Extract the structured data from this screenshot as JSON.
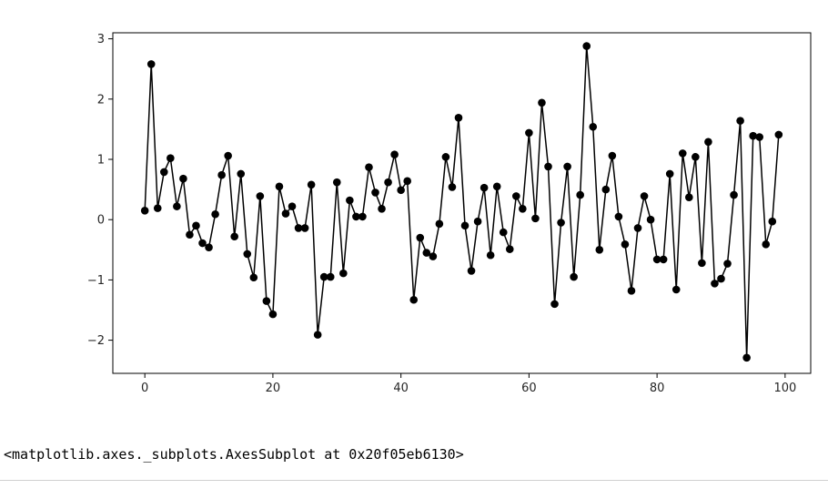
{
  "chart_data": {
    "type": "line",
    "marker": "circle",
    "color": "#000000",
    "xlabel": "",
    "ylabel": "",
    "title": "",
    "xlim": [
      -5,
      104
    ],
    "ylim": [
      -2.55,
      3.1
    ],
    "xticks": [
      0,
      20,
      40,
      60,
      80,
      100
    ],
    "yticks": [
      -2,
      -1,
      0,
      1,
      2,
      3
    ],
    "xtick_labels": [
      "0",
      "20",
      "40",
      "60",
      "80",
      "100"
    ],
    "ytick_labels": [
      "−2",
      "−1",
      "0",
      "1",
      "2",
      "3"
    ],
    "grid": false,
    "series": [
      {
        "x": [
          0,
          1,
          2,
          3,
          4,
          5,
          6,
          7,
          8,
          9,
          10,
          11,
          12,
          13,
          14,
          15,
          16,
          17,
          18,
          19,
          20,
          21,
          22,
          23,
          24,
          25,
          26,
          27,
          28,
          29,
          30,
          31,
          32,
          33,
          34,
          35,
          36,
          37,
          38,
          39,
          40,
          41,
          42,
          43,
          44,
          45,
          46,
          47,
          48,
          49,
          50,
          51,
          52,
          53,
          54,
          55,
          56,
          57,
          58,
          59,
          60,
          61,
          62,
          63,
          64,
          65,
          66,
          67,
          68,
          69,
          70,
          71,
          72,
          73,
          74,
          75,
          76,
          77,
          78,
          79,
          80,
          81,
          82,
          83,
          84,
          85,
          86,
          87,
          88,
          89,
          90,
          91,
          92,
          93,
          94,
          95,
          96,
          97,
          98,
          99
        ],
        "values": [
          0.15,
          2.58,
          0.19,
          0.79,
          1.02,
          0.22,
          0.68,
          -0.25,
          -0.1,
          -0.39,
          -0.46,
          0.09,
          0.74,
          1.06,
          -0.28,
          0.76,
          -0.57,
          -0.96,
          0.39,
          -1.35,
          -1.57,
          0.55,
          0.1,
          0.22,
          -0.14,
          -0.14,
          0.58,
          -1.91,
          -0.95,
          -0.95,
          0.62,
          -0.89,
          0.32,
          0.05,
          0.05,
          0.87,
          0.45,
          0.18,
          0.62,
          1.08,
          0.49,
          0.64,
          -1.33,
          -0.3,
          -0.55,
          -0.61,
          -0.07,
          1.04,
          0.54,
          1.69,
          -0.1,
          -0.85,
          -0.03,
          0.53,
          -0.59,
          0.55,
          -0.21,
          -0.49,
          0.39,
          0.18,
          1.44,
          0.02,
          1.94,
          0.88,
          -1.4,
          -0.05,
          0.88,
          -0.95,
          0.41,
          2.88,
          1.54,
          -0.5,
          0.5,
          1.06,
          0.05,
          -0.41,
          -1.18,
          -0.14,
          0.39,
          0.0,
          -0.66,
          -0.66,
          0.76,
          -1.16,
          1.1,
          0.37,
          1.04,
          -0.72,
          1.29,
          -1.06,
          -0.98,
          -0.73,
          0.41,
          1.64,
          -2.29,
          1.39,
          1.37,
          -0.41,
          -0.03,
          1.41
        ]
      }
    ]
  },
  "output": {
    "text": "<matplotlib.axes._subplots.AxesSubplot at 0x20f05eb6130>"
  }
}
